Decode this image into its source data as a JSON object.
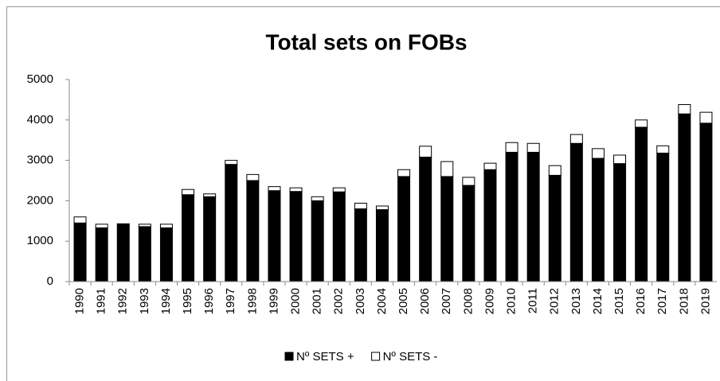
{
  "chart_data": {
    "type": "stacked_bar",
    "title": "Total sets on FOBs",
    "categories": [
      "1990",
      "1991",
      "1992",
      "1993",
      "1994",
      "1995",
      "1996",
      "1997",
      "1998",
      "1999",
      "2000",
      "2001",
      "2002",
      "2003",
      "2004",
      "2005",
      "2006",
      "2007",
      "2008",
      "2009",
      "2010",
      "2011",
      "2012",
      "2013",
      "2014",
      "2015",
      "2016",
      "2017",
      "2018",
      "2019"
    ],
    "series": [
      {
        "name": "Nº SETS +",
        "color": "#000000",
        "values": [
          1450,
          1330,
          1420,
          1360,
          1330,
          2150,
          2100,
          2900,
          2500,
          2250,
          2230,
          2000,
          2220,
          1800,
          1780,
          2600,
          3080,
          2600,
          2380,
          2770,
          3200,
          3200,
          2630,
          3420,
          3050,
          2920,
          3820,
          3180,
          4150,
          3920
        ]
      },
      {
        "name": "Nº SETS -",
        "color": "#ffffff",
        "values": [
          150,
          90,
          10,
          60,
          90,
          130,
          70,
          100,
          150,
          100,
          90,
          100,
          100,
          140,
          90,
          170,
          270,
          370,
          200,
          160,
          240,
          220,
          240,
          220,
          240,
          210,
          180,
          180,
          230,
          270
        ]
      }
    ],
    "ylim": [
      0,
      5000
    ],
    "yticks": [
      0,
      1000,
      2000,
      3000,
      4000,
      5000
    ],
    "legend": "bottom"
  }
}
